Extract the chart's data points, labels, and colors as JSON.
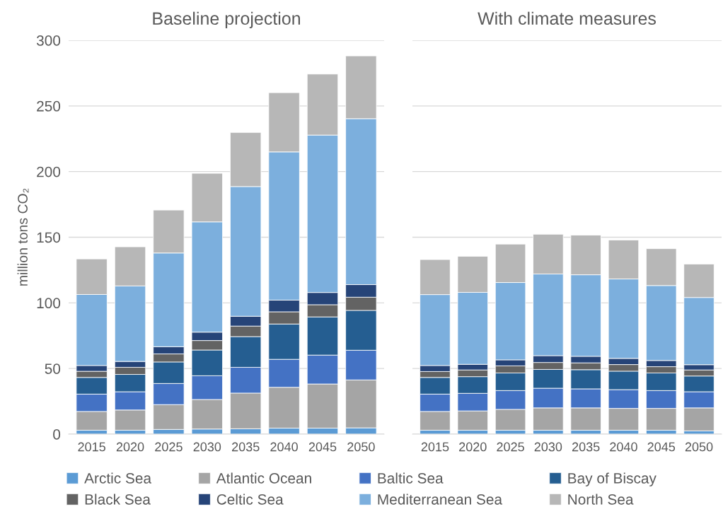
{
  "chart_data": [
    {
      "type": "bar",
      "stacked": true,
      "title": "Baseline projection",
      "ylabel": "million tons CO₂",
      "categories": [
        "2015",
        "2020",
        "2025",
        "2030",
        "2035",
        "2040",
        "2045",
        "2050"
      ],
      "ylim": [
        0,
        300
      ],
      "yticks": [
        0,
        50,
        100,
        150,
        200,
        250,
        300
      ],
      "grid": "y",
      "legend": "bottom",
      "series": [
        {
          "name": "Arctic Sea",
          "color": "#5b9bd5",
          "values": [
            3.0,
            3.0,
            3.6,
            3.9,
            4.1,
            4.6,
            4.6,
            4.8
          ]
        },
        {
          "name": "Atlantic Ocean",
          "color": "#a5a5a5",
          "values": [
            14.3,
            15.4,
            18.9,
            22.5,
            27.2,
            31.1,
            33.6,
            36.5
          ]
        },
        {
          "name": "Baltic Sea",
          "color": "#4472c4",
          "values": [
            13.2,
            13.9,
            16.1,
            18.1,
            19.6,
            21.3,
            22.0,
            22.6
          ]
        },
        {
          "name": "Bay of Biscay",
          "color": "#255e91",
          "values": [
            12.7,
            13.2,
            16.4,
            19.6,
            23.4,
            26.9,
            29.1,
            30.4
          ]
        },
        {
          "name": "Black Sea",
          "color": "#636363",
          "values": [
            4.7,
            5.4,
            6.1,
            7.2,
            8.0,
            9.3,
            9.3,
            10.0
          ]
        },
        {
          "name": "Celtic Sea",
          "color": "#264478",
          "values": [
            4.4,
            4.5,
            5.5,
            6.4,
            7.5,
            8.9,
            9.3,
            9.6
          ]
        },
        {
          "name": "Mediterranean Sea",
          "color": "#7cafdd",
          "values": [
            54.1,
            57.5,
            71.4,
            84.0,
            98.8,
            112.9,
            119.9,
            126.4
          ]
        },
        {
          "name": "North Sea",
          "color": "#b7b7b7",
          "values": [
            27.1,
            29.8,
            32.7,
            37.0,
            41.2,
            45.1,
            46.5,
            47.8
          ]
        }
      ]
    },
    {
      "type": "bar",
      "stacked": true,
      "title": "With climate measures",
      "tick_labels": "x",
      "categories": [
        "2015",
        "2020",
        "2025",
        "2030",
        "2035",
        "2040",
        "2045",
        "2050"
      ],
      "ylim": [
        0,
        300
      ],
      "yticks": [
        0,
        50,
        100,
        150,
        200,
        250,
        300
      ],
      "grid": "y",
      "series": [
        {
          "color": "#5b9bd5",
          "values": [
            3.0,
            3.0,
            3.0,
            3.0,
            3.0,
            3.0,
            3.0,
            2.5
          ]
        },
        {
          "color": "#a5a5a5",
          "values": [
            14.3,
            14.7,
            15.9,
            17.0,
            17.0,
            16.6,
            16.6,
            17.5
          ]
        },
        {
          "color": "#4472c4",
          "values": [
            13.2,
            13.4,
            14.3,
            15.0,
            14.5,
            14.3,
            13.6,
            12.3
          ]
        },
        {
          "color": "#255e91",
          "values": [
            12.7,
            12.7,
            13.4,
            14.3,
            14.6,
            14.1,
            13.4,
            12.0
          ]
        },
        {
          "color": "#636363",
          "values": [
            4.5,
            5.1,
            5.4,
            5.3,
            5.2,
            5.0,
            4.8,
            4.6
          ]
        },
        {
          "color": "#264478",
          "values": [
            4.6,
            4.3,
            4.6,
            5.2,
            5.0,
            4.7,
            4.7,
            4.0
          ]
        },
        {
          "color": "#7cafdd",
          "values": [
            54.0,
            54.8,
            58.9,
            62.2,
            62.1,
            60.5,
            57.1,
            51.2
          ]
        },
        {
          "color": "#b7b7b7",
          "values": [
            26.7,
            27.5,
            29.3,
            30.3,
            30.2,
            29.7,
            28.1,
            25.5
          ]
        }
      ]
    }
  ]
}
